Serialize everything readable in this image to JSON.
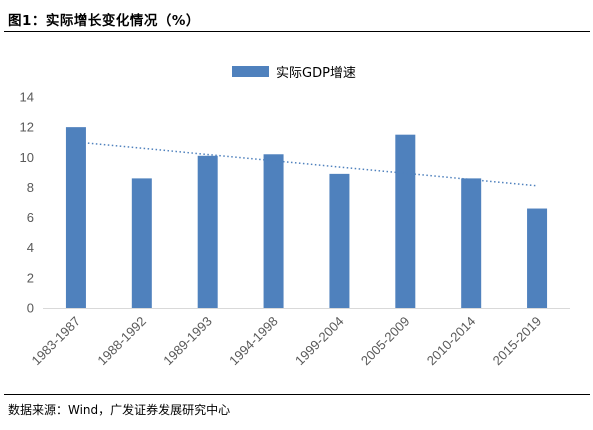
{
  "header": {
    "title": "图1：实际增长变化情况（%）"
  },
  "footer": {
    "source": "数据来源：Wind，广发证券发展研究中心"
  },
  "colors": {
    "bar": "#4f81bd",
    "trend": "#4f81bd",
    "axis": "#d9d9d9",
    "tick_text": "#595959"
  },
  "chart_data": {
    "type": "bar",
    "title": "",
    "xlabel": "",
    "ylabel": "",
    "categories": [
      "1983-1987",
      "1988-1992",
      "1989-1993",
      "1994-1998",
      "1999-2004",
      "2005-2009",
      "2010-2014",
      "2015-2019"
    ],
    "series": [
      {
        "name": "实际GDP增速",
        "values": [
          12.0,
          8.6,
          10.1,
          10.2,
          8.9,
          11.5,
          8.6,
          6.6
        ]
      }
    ],
    "trendline": {
      "type": "linear",
      "style": "dotted"
    },
    "ylim": [
      0,
      14
    ],
    "yticks": [
      0,
      2,
      4,
      6,
      8,
      10,
      12,
      14
    ],
    "grid": false,
    "legend": "top-center"
  }
}
